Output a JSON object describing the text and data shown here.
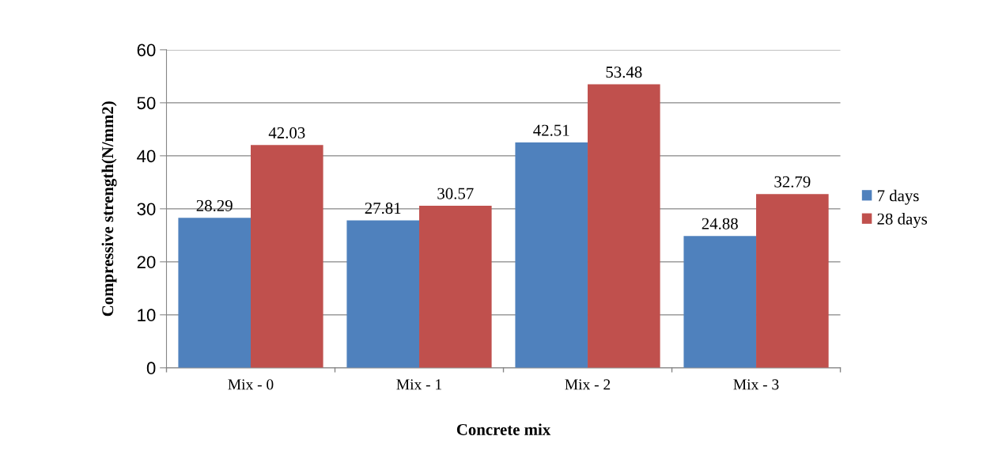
{
  "chart_data": {
    "type": "bar",
    "xlabel": "Concrete mix",
    "ylabel": "Compressive strength(N/mm2)",
    "categories": [
      "Mix - 0",
      "Mix - 1",
      "Mix - 2",
      "Mix - 3"
    ],
    "series": [
      {
        "name": "7 days",
        "color": "#4f81bd",
        "values": [
          28.29,
          27.81,
          42.51,
          24.88
        ]
      },
      {
        "name": "28 days",
        "color": "#c0504d",
        "values": [
          42.03,
          30.57,
          53.48,
          32.79
        ]
      }
    ],
    "ylim": [
      0,
      60
    ],
    "yticks": [
      0,
      10,
      20,
      30,
      40,
      50,
      60
    ],
    "grid": "y",
    "legend": "right",
    "data_labels": true
  }
}
